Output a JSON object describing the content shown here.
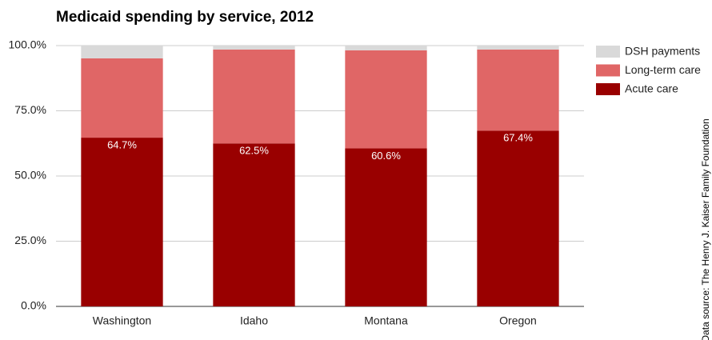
{
  "chart_data": {
    "type": "stacked_bar",
    "title": "Medicaid spending by service, 2012",
    "categories": [
      "Washington",
      "Idaho",
      "Montana",
      "Oregon"
    ],
    "series": [
      {
        "name": "Acute care",
        "color": "#990000",
        "values": [
          64.7,
          62.5,
          60.6,
          67.4
        ],
        "value_labels": [
          "64.7%",
          "62.5%",
          "60.6%",
          "67.4%"
        ]
      },
      {
        "name": "Long-term care",
        "color": "#e06666",
        "values": [
          30.4,
          36.0,
          37.6,
          31.1
        ]
      },
      {
        "name": "DSH payments",
        "color": "#d9d9d9",
        "values": [
          4.9,
          1.5,
          1.8,
          1.5
        ]
      }
    ],
    "ylim": [
      0,
      100
    ],
    "yticks": [
      {
        "value": 0,
        "label": "0.0%"
      },
      {
        "value": 25,
        "label": "25.0%"
      },
      {
        "value": 50,
        "label": "50.0%"
      },
      {
        "value": 75,
        "label": "75.0%"
      },
      {
        "value": 100,
        "label": "100.0%"
      }
    ],
    "grid": true,
    "source": "Data source: The Henry J. Kaiser Family Foundation"
  }
}
